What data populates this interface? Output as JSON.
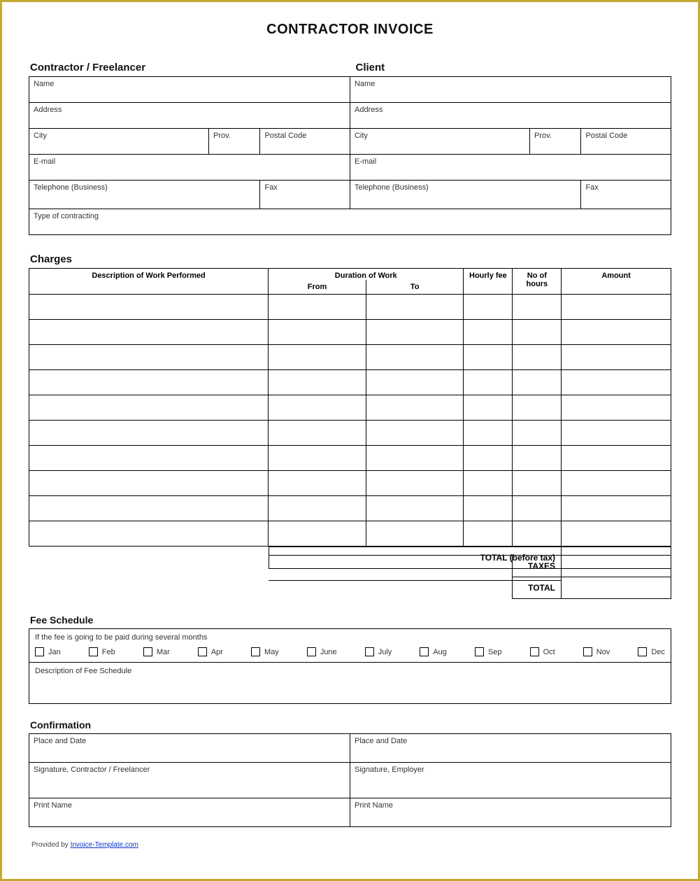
{
  "title": "CONTRACTOR INVOICE",
  "contractor": {
    "header": "Contractor / Freelancer",
    "fields": {
      "name": "Name",
      "address": "Address",
      "city": "City",
      "prov": "Prov.",
      "postal": "Postal Code",
      "email": "E-mail",
      "tel": "Telephone (Business)",
      "fax": "Fax",
      "type": "Type of contracting"
    }
  },
  "client": {
    "header": "Client",
    "fields": {
      "name": "Name",
      "address": "Address",
      "city": "City",
      "prov": "Prov.",
      "postal": "Postal Code",
      "email": "E-mail",
      "tel": "Telephone (Business)",
      "fax": "Fax"
    }
  },
  "charges": {
    "header": "Charges",
    "columns": {
      "desc": "Description of Work Performed",
      "duration": "Duration of Work",
      "from": "From",
      "to": "To",
      "hourly": "Hourly fee",
      "hours": "No of hours",
      "amount": "Amount"
    },
    "row_count": 10,
    "totals": {
      "before_tax": "TOTAL (before tax)",
      "taxes": "TAXES",
      "total": "TOTAL"
    }
  },
  "fee": {
    "header": "Fee Schedule",
    "if_line": "If the fee is going to be paid during several months",
    "months": [
      "Jan",
      "Feb",
      "Mar",
      "Apr",
      "May",
      "June",
      "July",
      "Aug",
      "Sep",
      "Oct",
      "Nov",
      "Dec"
    ],
    "desc_label": "Description of Fee Schedule"
  },
  "confirmation": {
    "header": "Confirmation",
    "fields": {
      "place_date": "Place and Date",
      "sig_contractor": "Signature, Contractor / Freelancer",
      "sig_employer": "Signature, Employer",
      "print_name": "Print Name"
    }
  },
  "footer": {
    "provided_by": "Provided by ",
    "link_text": "Invoice-Template.com"
  },
  "colors": {
    "border_outer": "#c4a933",
    "border_cell": "#000000",
    "text": "#333333",
    "link": "#0a36c7",
    "bg": "#ffffff"
  }
}
